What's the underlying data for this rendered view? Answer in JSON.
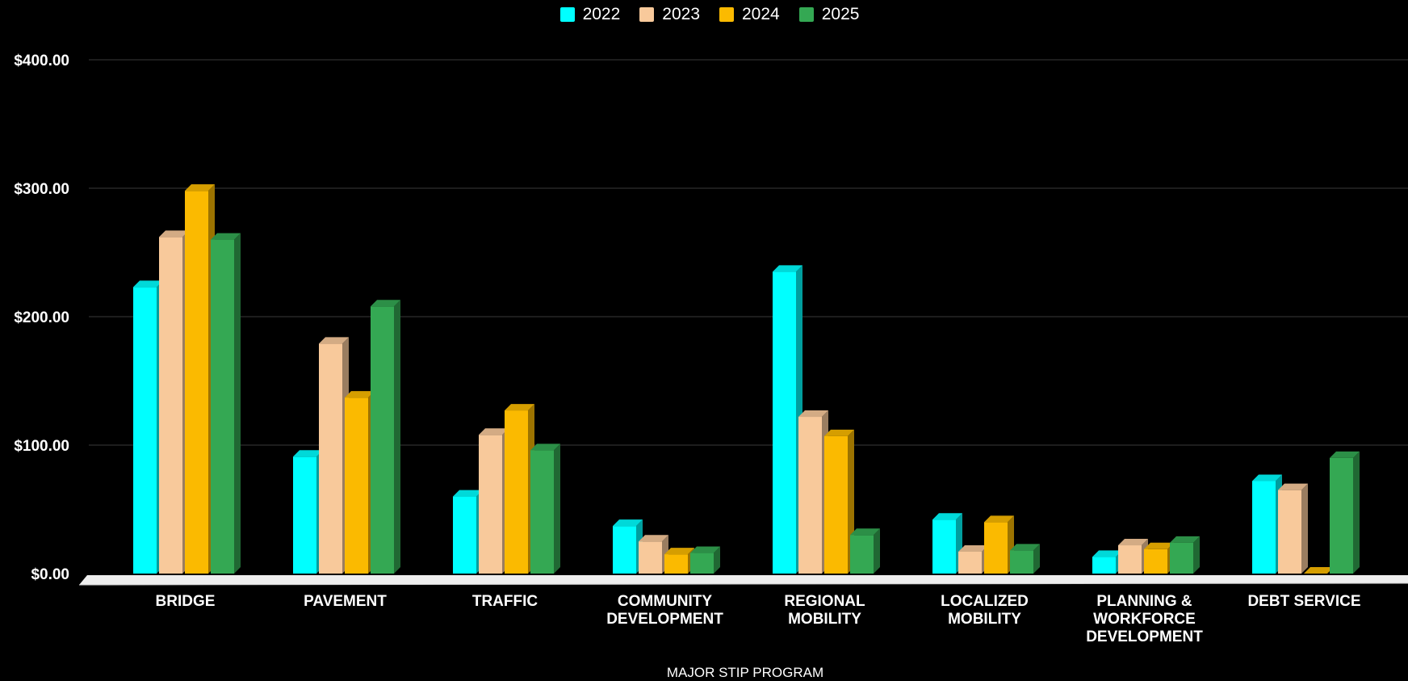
{
  "chart_data": {
    "type": "bar",
    "title": "",
    "xlabel": "MAJOR STIP PROGRAM",
    "ylabel": "",
    "ylim": [
      0,
      400
    ],
    "yticks": [
      "$0.00",
      "$100.00",
      "$200.00",
      "$300.00",
      "$400.00"
    ],
    "ytick_values": [
      0,
      100,
      200,
      300,
      400
    ],
    "grid": true,
    "legend_position": "top-center",
    "categories": [
      [
        "BRIDGE"
      ],
      [
        "PAVEMENT"
      ],
      [
        "TRAFFIC"
      ],
      [
        "COMMUNITY",
        "DEVELOPMENT"
      ],
      [
        "REGIONAL",
        "MOBILITY"
      ],
      [
        "LOCALIZED",
        "MOBILITY"
      ],
      [
        "PLANNING &",
        "WORKFORCE",
        "DEVELOPMENT"
      ],
      [
        "DEBT SERVICE"
      ]
    ],
    "series": [
      {
        "name": "2022",
        "color": "#00FFFF",
        "values": [
          223,
          91,
          60,
          37,
          235,
          42,
          13,
          72
        ]
      },
      {
        "name": "2023",
        "color": "#F8C99B",
        "values": [
          262,
          179,
          108,
          25,
          122,
          17,
          22,
          65
        ]
      },
      {
        "name": "2024",
        "color": "#FBBA00",
        "values": [
          298,
          137,
          127,
          15,
          107,
          40,
          19,
          0
        ]
      },
      {
        "name": "2025",
        "color": "#34A853",
        "values": [
          260,
          208,
          96,
          16,
          30,
          18,
          24,
          90
        ]
      }
    ]
  }
}
